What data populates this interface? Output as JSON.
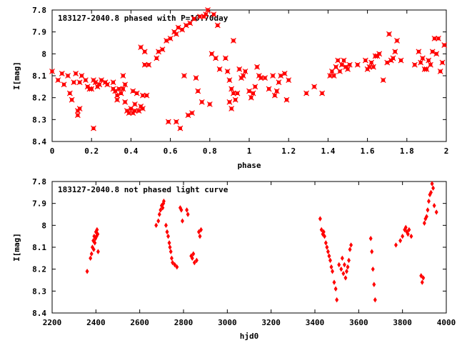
{
  "chart_data": [
    {
      "type": "scatter",
      "title": "183127-2040.8 phased with P=10.70day",
      "xlabel": "phase",
      "ylabel": "I[mag]",
      "xlim": [
        0,
        2
      ],
      "ylim": [
        8.4,
        7.8
      ],
      "y_inverted": true,
      "xticks": [
        "0",
        "0.2",
        "0.4",
        "0.6",
        "0.8",
        "1",
        "1.2",
        "1.4",
        "1.6",
        "1.8",
        "2"
      ],
      "yticks": [
        "7.8",
        "7.9",
        "8",
        "8.1",
        "8.2",
        "8.3",
        "8.4"
      ],
      "marker_color": "#ff0000",
      "marker": "filled-square-cross",
      "series": [
        {
          "points": [
            [
              0.0,
              8.08
            ],
            [
              0.03,
              8.12
            ],
            [
              0.05,
              8.09
            ],
            [
              0.06,
              8.14
            ],
            [
              0.08,
              8.1
            ],
            [
              0.09,
              8.18
            ],
            [
              0.1,
              8.21
            ],
            [
              0.11,
              8.13
            ],
            [
              0.12,
              8.09
            ],
            [
              0.13,
              8.26
            ],
            [
              0.13,
              8.28
            ],
            [
              0.14,
              8.25
            ],
            [
              0.14,
              8.13
            ],
            [
              0.15,
              8.1
            ],
            [
              0.17,
              8.12
            ],
            [
              0.18,
              8.15
            ],
            [
              0.19,
              8.16
            ],
            [
              0.2,
              8.16
            ],
            [
              0.21,
              8.12
            ],
            [
              0.21,
              8.34
            ],
            [
              0.22,
              8.13
            ],
            [
              0.23,
              8.15
            ],
            [
              0.24,
              8.14
            ],
            [
              0.25,
              8.12
            ],
            [
              0.27,
              8.13
            ],
            [
              0.28,
              8.14
            ],
            [
              0.31,
              8.13
            ],
            [
              0.31,
              8.16
            ],
            [
              0.32,
              8.17
            ],
            [
              0.33,
              8.19
            ],
            [
              0.33,
              8.21
            ],
            [
              0.34,
              8.16
            ],
            [
              0.35,
              8.18
            ],
            [
              0.36,
              8.16
            ],
            [
              0.36,
              8.1
            ],
            [
              0.37,
              8.14
            ],
            [
              0.37,
              8.22
            ],
            [
              0.38,
              8.26
            ],
            [
              0.39,
              8.27
            ],
            [
              0.4,
              8.25
            ],
            [
              0.41,
              8.17
            ],
            [
              0.41,
              8.27
            ],
            [
              0.42,
              8.26
            ],
            [
              0.42,
              8.23
            ],
            [
              0.43,
              8.18
            ],
            [
              0.44,
              8.26
            ],
            [
              0.45,
              8.24
            ],
            [
              0.45,
              7.97
            ],
            [
              0.46,
              8.19
            ],
            [
              0.47,
              7.99
            ],
            [
              0.46,
              8.25
            ],
            [
              0.47,
              8.05
            ],
            [
              0.48,
              8.19
            ],
            [
              0.49,
              8.05
            ],
            [
              0.53,
              8.02
            ],
            [
              0.54,
              7.99
            ],
            [
              0.56,
              7.98
            ],
            [
              0.58,
              7.94
            ],
            [
              0.59,
              8.31
            ],
            [
              0.6,
              7.93
            ],
            [
              0.62,
              7.9
            ],
            [
              0.63,
              8.31
            ],
            [
              0.63,
              7.91
            ],
            [
              0.64,
              7.88
            ],
            [
              0.65,
              8.34
            ],
            [
              0.66,
              7.89
            ],
            [
              0.67,
              8.1
            ],
            [
              0.68,
              7.87
            ],
            [
              0.69,
              8.28
            ],
            [
              0.7,
              7.86
            ],
            [
              0.71,
              8.27
            ],
            [
              0.72,
              7.84
            ],
            [
              0.73,
              8.11
            ],
            [
              0.74,
              8.17
            ],
            [
              0.75,
              7.83
            ],
            [
              0.76,
              8.22
            ],
            [
              0.77,
              7.83
            ],
            [
              0.78,
              7.82
            ],
            [
              0.79,
              7.8
            ],
            [
              0.8,
              8.23
            ],
            [
              0.81,
              8.0
            ],
            [
              0.82,
              7.82
            ],
            [
              0.83,
              8.02
            ],
            [
              0.84,
              7.87
            ],
            [
              0.85,
              8.07
            ],
            [
              0.88,
              8.02
            ],
            [
              0.89,
              8.08
            ],
            [
              0.9,
              8.12
            ],
            [
              0.9,
              8.22
            ],
            [
              0.91,
              8.25
            ],
            [
              0.91,
              8.16
            ],
            [
              0.92,
              7.94
            ],
            [
              0.92,
              8.18
            ],
            [
              0.93,
              8.21
            ],
            [
              0.94,
              8.18
            ],
            [
              0.95,
              8.07
            ],
            [
              0.96,
              8.11
            ],
            [
              0.97,
              8.1
            ],
            [
              0.98,
              8.08
            ],
            [
              1.0,
              8.17
            ],
            [
              1.01,
              8.2
            ],
            [
              1.02,
              8.18
            ],
            [
              1.03,
              8.15
            ],
            [
              1.04,
              8.06
            ],
            [
              1.05,
              8.1
            ],
            [
              1.06,
              8.11
            ],
            [
              1.08,
              8.11
            ],
            [
              1.1,
              8.16
            ],
            [
              1.12,
              8.1
            ],
            [
              1.13,
              8.19
            ],
            [
              1.14,
              8.17
            ],
            [
              1.15,
              8.13
            ],
            [
              1.16,
              8.1
            ],
            [
              1.18,
              8.09
            ],
            [
              1.19,
              8.21
            ],
            [
              1.2,
              8.12
            ],
            [
              1.29,
              8.18
            ],
            [
              1.33,
              8.15
            ],
            [
              1.37,
              8.18
            ],
            [
              1.41,
              8.1
            ],
            [
              1.42,
              8.08
            ],
            [
              1.43,
              8.1
            ],
            [
              1.44,
              8.06
            ],
            [
              1.45,
              8.03
            ],
            [
              1.46,
              8.08
            ],
            [
              1.47,
              8.05
            ],
            [
              1.48,
              8.03
            ],
            [
              1.49,
              8.06
            ],
            [
              1.5,
              8.07
            ],
            [
              1.51,
              8.05
            ],
            [
              1.55,
              8.05
            ],
            [
              1.59,
              8.03
            ],
            [
              1.6,
              8.07
            ],
            [
              1.61,
              8.06
            ],
            [
              1.62,
              8.04
            ],
            [
              1.63,
              8.06
            ],
            [
              1.64,
              8.01
            ],
            [
              1.65,
              8.01
            ],
            [
              1.66,
              8.0
            ],
            [
              1.68,
              8.12
            ],
            [
              1.7,
              8.04
            ],
            [
              1.71,
              7.91
            ],
            [
              1.72,
              8.03
            ],
            [
              1.73,
              8.02
            ],
            [
              1.74,
              7.99
            ],
            [
              1.75,
              7.94
            ],
            [
              1.77,
              8.03
            ],
            [
              1.84,
              8.05
            ],
            [
              1.86,
              7.99
            ],
            [
              1.87,
              8.04
            ],
            [
              1.88,
              8.02
            ],
            [
              1.89,
              8.07
            ],
            [
              1.9,
              8.07
            ],
            [
              1.91,
              8.03
            ],
            [
              1.92,
              8.05
            ],
            [
              1.93,
              7.99
            ],
            [
              1.94,
              7.93
            ],
            [
              1.95,
              8.0
            ],
            [
              1.96,
              7.93
            ],
            [
              1.97,
              8.08
            ],
            [
              1.98,
              8.04
            ],
            [
              1.99,
              7.96
            ]
          ]
        }
      ]
    },
    {
      "type": "scatter",
      "title": "183127-2040.8 not phased light curve",
      "xlabel": "hjd0",
      "ylabel": "I[mag]",
      "xlim": [
        2200,
        4000
      ],
      "ylim": [
        8.4,
        7.8
      ],
      "y_inverted": true,
      "xticks": [
        "2200",
        "2400",
        "2600",
        "2800",
        "3000",
        "3200",
        "3400",
        "3600",
        "3800",
        "4000"
      ],
      "yticks": [
        "7.8",
        "7.9",
        "8",
        "8.1",
        "8.2",
        "8.3",
        "8.4"
      ],
      "marker_color": "#ff0000",
      "marker": "filled-diamond",
      "series": [
        {
          "points": [
            [
              2360,
              8.21
            ],
            [
              2375,
              8.15
            ],
            [
              2380,
              8.13
            ],
            [
              2384,
              8.1
            ],
            [
              2388,
              8.07
            ],
            [
              2390,
              8.11
            ],
            [
              2392,
              8.05
            ],
            [
              2395,
              8.08
            ],
            [
              2398,
              8.06
            ],
            [
              2400,
              8.03
            ],
            [
              2403,
              8.05
            ],
            [
              2405,
              8.02
            ],
            [
              2408,
              8.04
            ],
            [
              2410,
              8.12
            ],
            [
              2675,
              8.0
            ],
            [
              2685,
              7.98
            ],
            [
              2690,
              7.95
            ],
            [
              2695,
              7.93
            ],
            [
              2700,
              7.91
            ],
            [
              2705,
              7.92
            ],
            [
              2708,
              7.9
            ],
            [
              2710,
              7.89
            ],
            [
              2720,
              8.0
            ],
            [
              2725,
              8.03
            ],
            [
              2730,
              8.05
            ],
            [
              2735,
              8.08
            ],
            [
              2738,
              8.1
            ],
            [
              2742,
              8.12
            ],
            [
              2746,
              8.15
            ],
            [
              2750,
              8.17
            ],
            [
              2760,
              8.18
            ],
            [
              2770,
              8.19
            ],
            [
              2785,
              7.92
            ],
            [
              2790,
              7.93
            ],
            [
              2795,
              7.98
            ],
            [
              2815,
              7.93
            ],
            [
              2820,
              7.95
            ],
            [
              2835,
              8.14
            ],
            [
              2840,
              8.15
            ],
            [
              2845,
              8.13
            ],
            [
              2850,
              8.17
            ],
            [
              2860,
              8.16
            ],
            [
              2870,
              8.03
            ],
            [
              2875,
              8.05
            ],
            [
              2880,
              8.02
            ],
            [
              3424,
              7.97
            ],
            [
              3430,
              8.02
            ],
            [
              3436,
              8.04
            ],
            [
              3440,
              8.03
            ],
            [
              3444,
              8.05
            ],
            [
              3450,
              8.08
            ],
            [
              3455,
              8.1
            ],
            [
              3460,
              8.12
            ],
            [
              3465,
              8.14
            ],
            [
              3470,
              8.16
            ],
            [
              3475,
              8.19
            ],
            [
              3480,
              8.21
            ],
            [
              3488,
              8.26
            ],
            [
              3495,
              8.29
            ],
            [
              3500,
              8.34
            ],
            [
              3510,
              8.18
            ],
            [
              3520,
              8.2
            ],
            [
              3525,
              8.15
            ],
            [
              3530,
              8.22
            ],
            [
              3535,
              8.18
            ],
            [
              3540,
              8.24
            ],
            [
              3545,
              8.21
            ],
            [
              3550,
              8.19
            ],
            [
              3555,
              8.16
            ],
            [
              3560,
              8.11
            ],
            [
              3565,
              8.09
            ],
            [
              3655,
              8.06
            ],
            [
              3660,
              8.12
            ],
            [
              3665,
              8.2
            ],
            [
              3670,
              8.27
            ],
            [
              3675,
              8.34
            ],
            [
              3770,
              8.09
            ],
            [
              3790,
              8.07
            ],
            [
              3800,
              8.05
            ],
            [
              3810,
              8.02
            ],
            [
              3815,
              8.01
            ],
            [
              3820,
              8.03
            ],
            [
              3825,
              8.04
            ],
            [
              3830,
              8.02
            ],
            [
              3840,
              8.05
            ],
            [
              3885,
              8.23
            ],
            [
              3890,
              8.26
            ],
            [
              3895,
              8.24
            ],
            [
              3900,
              7.99
            ],
            [
              3905,
              7.97
            ],
            [
              3910,
              7.96
            ],
            [
              3915,
              7.93
            ],
            [
              3920,
              7.89
            ],
            [
              3925,
              7.86
            ],
            [
              3930,
              7.85
            ],
            [
              3935,
              7.81
            ],
            [
              3940,
              7.83
            ],
            [
              3945,
              7.91
            ],
            [
              3955,
              7.94
            ]
          ]
        }
      ]
    }
  ]
}
